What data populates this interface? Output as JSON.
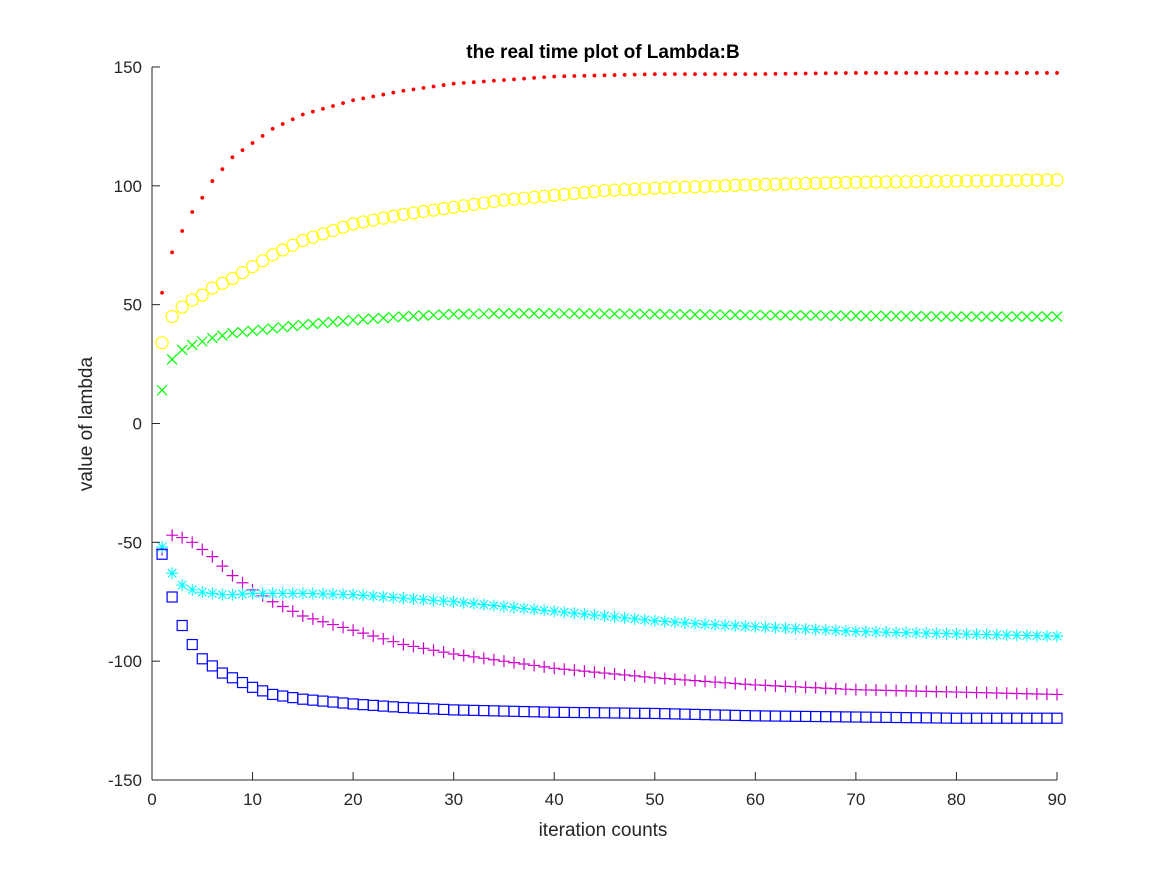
{
  "chart_data": {
    "type": "scatter",
    "title": "the real time plot of Lambda:B",
    "xlabel": "iteration counts",
    "ylabel": "value of lambda",
    "xlim": [
      0,
      90
    ],
    "ylim": [
      -150,
      150
    ],
    "xticks": [
      0,
      10,
      20,
      30,
      40,
      50,
      60,
      70,
      80,
      90
    ],
    "yticks": [
      -150,
      -100,
      -50,
      0,
      50,
      100,
      150
    ],
    "grid": false,
    "x_start": 1,
    "x_end": 90,
    "series": [
      {
        "marker": "dot",
        "color": "#ff0000",
        "points": [
          [
            1,
            55
          ],
          [
            2,
            72
          ],
          [
            3,
            81
          ],
          [
            4,
            89
          ],
          [
            5,
            95
          ],
          [
            6,
            102
          ],
          [
            7,
            107
          ],
          [
            8,
            112
          ],
          [
            10,
            118
          ],
          [
            12,
            124
          ],
          [
            15,
            130
          ],
          [
            20,
            136
          ],
          [
            25,
            140
          ],
          [
            30,
            143
          ],
          [
            40,
            146
          ],
          [
            50,
            147
          ],
          [
            60,
            147
          ],
          [
            70,
            147.5
          ],
          [
            80,
            147.5
          ],
          [
            90,
            147.5
          ]
        ]
      },
      {
        "marker": "circle",
        "color": "#ffff00",
        "points": [
          [
            1,
            34
          ],
          [
            2,
            45
          ],
          [
            3,
            49
          ],
          [
            4,
            52
          ],
          [
            5,
            54
          ],
          [
            6,
            57
          ],
          [
            7,
            59
          ],
          [
            8,
            61
          ],
          [
            10,
            66
          ],
          [
            12,
            71
          ],
          [
            15,
            77
          ],
          [
            20,
            84
          ],
          [
            25,
            88
          ],
          [
            30,
            91
          ],
          [
            35,
            94
          ],
          [
            40,
            96
          ],
          [
            45,
            98
          ],
          [
            50,
            99
          ],
          [
            60,
            100.5
          ],
          [
            70,
            101.5
          ],
          [
            80,
            102
          ],
          [
            90,
            102.5
          ]
        ]
      },
      {
        "marker": "x",
        "color": "#00ff00",
        "points": [
          [
            1,
            14
          ],
          [
            2,
            27
          ],
          [
            3,
            31
          ],
          [
            4,
            33
          ],
          [
            5,
            34.5
          ],
          [
            6,
            36
          ],
          [
            7,
            37
          ],
          [
            8,
            38
          ],
          [
            10,
            39
          ],
          [
            15,
            41.5
          ],
          [
            20,
            43.5
          ],
          [
            25,
            45
          ],
          [
            30,
            46
          ],
          [
            35,
            46.3
          ],
          [
            40,
            46.3
          ],
          [
            45,
            46.2
          ],
          [
            50,
            46
          ],
          [
            60,
            45.6
          ],
          [
            70,
            45.3
          ],
          [
            80,
            45
          ],
          [
            90,
            45
          ]
        ]
      },
      {
        "marker": "plus",
        "color": "#cc00cc",
        "points": [
          [
            1,
            -53
          ],
          [
            2,
            -47
          ],
          [
            3,
            -48
          ],
          [
            4,
            -50
          ],
          [
            5,
            -53
          ],
          [
            6,
            -56
          ],
          [
            7,
            -60
          ],
          [
            8,
            -64
          ],
          [
            9,
            -67
          ],
          [
            10,
            -70
          ],
          [
            12,
            -75
          ],
          [
            15,
            -81
          ],
          [
            20,
            -87
          ],
          [
            25,
            -93
          ],
          [
            30,
            -97
          ],
          [
            40,
            -103
          ],
          [
            50,
            -107
          ],
          [
            60,
            -110
          ],
          [
            70,
            -112
          ],
          [
            80,
            -113
          ],
          [
            90,
            -114
          ]
        ]
      },
      {
        "marker": "asterisk",
        "color": "#00ffff",
        "points": [
          [
            1,
            -52
          ],
          [
            2,
            -63
          ],
          [
            3,
            -68
          ],
          [
            4,
            -70
          ],
          [
            5,
            -71
          ],
          [
            6,
            -71.5
          ],
          [
            7,
            -72
          ],
          [
            8,
            -72
          ],
          [
            10,
            -71.5
          ],
          [
            15,
            -71.5
          ],
          [
            20,
            -72
          ],
          [
            25,
            -73.5
          ],
          [
            30,
            -75
          ],
          [
            35,
            -77
          ],
          [
            40,
            -79
          ],
          [
            45,
            -81
          ],
          [
            50,
            -83
          ],
          [
            55,
            -84.5
          ],
          [
            60,
            -85.5
          ],
          [
            70,
            -87.5
          ],
          [
            80,
            -88.5
          ],
          [
            90,
            -89.5
          ]
        ]
      },
      {
        "marker": "square",
        "color": "#0000ff",
        "points": [
          [
            1,
            -55
          ],
          [
            2,
            -73
          ],
          [
            3,
            -85
          ],
          [
            4,
            -93
          ],
          [
            5,
            -99
          ],
          [
            6,
            -102
          ],
          [
            7,
            -105
          ],
          [
            8,
            -107
          ],
          [
            9,
            -109
          ],
          [
            10,
            -111
          ],
          [
            12,
            -114
          ],
          [
            15,
            -116
          ],
          [
            20,
            -118
          ],
          [
            25,
            -119.5
          ],
          [
            30,
            -120.5
          ],
          [
            40,
            -121.5
          ],
          [
            50,
            -122
          ],
          [
            60,
            -123
          ],
          [
            70,
            -123.5
          ],
          [
            80,
            -124
          ],
          [
            90,
            -124
          ]
        ]
      }
    ]
  }
}
